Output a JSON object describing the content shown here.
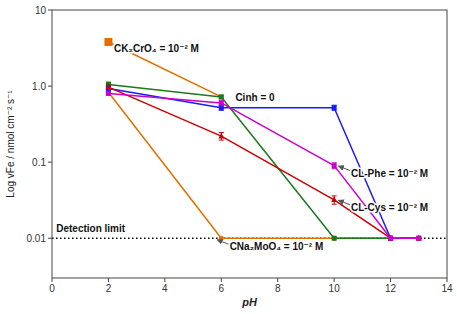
{
  "chart_data": {
    "type": "line",
    "log": "y",
    "grid": false,
    "xlabel": "pH",
    "ylabel": "Log vFe / nmol cm⁻² s⁻¹",
    "xlim": [
      0,
      14
    ],
    "ylim": [
      0.003,
      10
    ],
    "xticks": [
      0,
      2,
      4,
      6,
      8,
      10,
      12,
      14
    ],
    "yticks": [
      0.01,
      0.1,
      {
        "value": 1,
        "label": "1.0"
      },
      10
    ],
    "series": [
      {
        "type": "line",
        "color": "#e07000",
        "marker": "circle",
        "x": [
          2,
          6,
          10,
          12,
          13
        ],
        "values": [
          0.83,
          0.01,
          0.01,
          0.01,
          0.01
        ]
      },
      {
        "type": "line",
        "color": "#e07000",
        "marker": "none",
        "x": [
          2,
          6
        ],
        "values": [
          3.8,
          0.72
        ]
      },
      {
        "type": "scatter",
        "color": "#e07000",
        "marker": "square",
        "x": [
          2
        ],
        "values": [
          3.8
        ]
      },
      {
        "type": "line",
        "color": "#1a7a1a",
        "marker": "square",
        "x": [
          2,
          6,
          10,
          12,
          13
        ],
        "values": [
          1.05,
          0.72,
          0.01,
          0.01,
          0.01
        ],
        "errors": [
          0.08,
          0.04,
          0.0,
          0.0,
          0.0
        ]
      },
      {
        "type": "line",
        "color": "#1a1aff",
        "marker": "square",
        "x": [
          2,
          6,
          10,
          12
        ],
        "values": [
          0.93,
          0.52,
          0.52,
          0.01
        ],
        "errors": [
          0.07,
          0.04,
          0.04,
          0.0
        ]
      },
      {
        "type": "line",
        "color": "#cc0000",
        "marker": "triangle",
        "x": [
          2,
          6,
          10,
          12,
          13
        ],
        "values": [
          0.97,
          0.22,
          0.032,
          0.01,
          0.01
        ],
        "errors": [
          0.06,
          0.025,
          0.004,
          0.0,
          0.0
        ]
      },
      {
        "type": "line",
        "color": "#cc00cc",
        "marker": "square",
        "x": [
          2,
          6,
          10,
          12,
          13
        ],
        "values": [
          0.8,
          0.6,
          0.09,
          0.01,
          0.01
        ],
        "errors": [
          0.04,
          0.04,
          0.008,
          0.0,
          0.0
        ]
      },
      {
        "type": "hline",
        "color": "#000000",
        "line_style": "dotted",
        "values": [
          0.01
        ]
      }
    ],
    "annotations": [
      {
        "text": "CK₂CrO₄ = 10⁻² M",
        "x": 2.2,
        "y": 2.8
      },
      {
        "text": "Cinh = 0",
        "x": 6.5,
        "y": 0.63
      },
      {
        "text": "Detection limit",
        "x": 0.15,
        "y": 0.012
      },
      {
        "text": "CNa₂MoO₄ = 10⁻² M",
        "x": 5.8,
        "y": 0.01,
        "arrow": true
      },
      {
        "text": "CL-Phe = 10⁻² M",
        "x": 10.1,
        "y": 0.093,
        "arrow": true
      },
      {
        "text": "CL-Cys = 10⁻² M",
        "x": 10.1,
        "y": 0.033,
        "arrow": true
      }
    ]
  }
}
